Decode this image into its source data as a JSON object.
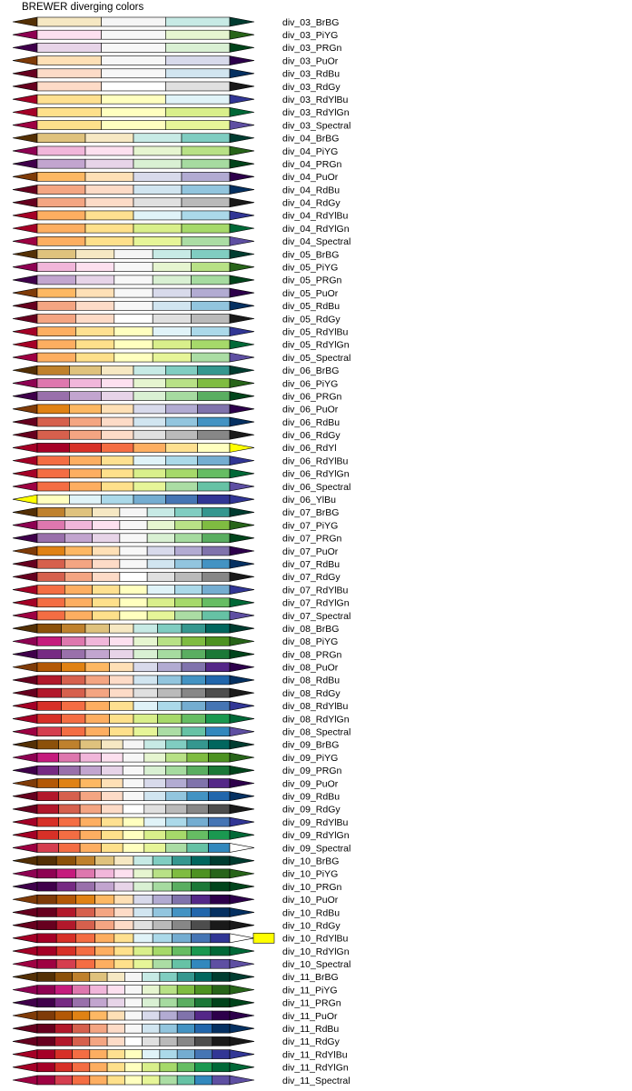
{
  "title": "BREWER diverging colors",
  "chart_data": {
    "type": "table",
    "title": "BREWER diverging colors",
    "palettes": [
      {
        "name": "div_03_BrBG",
        "n": 3
      },
      {
        "name": "div_03_PiYG",
        "n": 3
      },
      {
        "name": "div_03_PRGn",
        "n": 3
      },
      {
        "name": "div_03_PuOr",
        "n": 3
      },
      {
        "name": "div_03_RdBu",
        "n": 3
      },
      {
        "name": "div_03_RdGy",
        "n": 3
      },
      {
        "name": "div_03_RdYlBu",
        "n": 3
      },
      {
        "name": "div_03_RdYlGn",
        "n": 3
      },
      {
        "name": "div_03_Spectral",
        "n": 3
      },
      {
        "name": "div_04_BrBG",
        "n": 4
      },
      {
        "name": "div_04_PiYG",
        "n": 4
      },
      {
        "name": "div_04_PRGn",
        "n": 4
      },
      {
        "name": "div_04_PuOr",
        "n": 4
      },
      {
        "name": "div_04_RdBu",
        "n": 4
      },
      {
        "name": "div_04_RdGy",
        "n": 4
      },
      {
        "name": "div_04_RdYlBu",
        "n": 4
      },
      {
        "name": "div_04_RdYlGn",
        "n": 4
      },
      {
        "name": "div_04_Spectral",
        "n": 4
      },
      {
        "name": "div_05_BrBG",
        "n": 5
      },
      {
        "name": "div_05_PiYG",
        "n": 5
      },
      {
        "name": "div_05_PRGn",
        "n": 5
      },
      {
        "name": "div_05_PuOr",
        "n": 5
      },
      {
        "name": "div_05_RdBu",
        "n": 5
      },
      {
        "name": "div_05_RdGy",
        "n": 5
      },
      {
        "name": "div_05_RdYlBu",
        "n": 5
      },
      {
        "name": "div_05_RdYlGn",
        "n": 5
      },
      {
        "name": "div_05_Spectral",
        "n": 5
      },
      {
        "name": "div_06_BrBG",
        "n": 6
      },
      {
        "name": "div_06_PiYG",
        "n": 6
      },
      {
        "name": "div_06_PRGn",
        "n": 6
      },
      {
        "name": "div_06_PuOr",
        "n": 6
      },
      {
        "name": "div_06_RdBu",
        "n": 6
      },
      {
        "name": "div_06_RdGy",
        "n": 6
      },
      {
        "name": "div_06_RdYl",
        "n": 6
      },
      {
        "name": "div_06_RdYlBu",
        "n": 6
      },
      {
        "name": "div_06_RdYlGn",
        "n": 6
      },
      {
        "name": "div_06_Spectral",
        "n": 6
      },
      {
        "name": "div_06_YlBu",
        "n": 6
      },
      {
        "name": "div_07_BrBG",
        "n": 7
      },
      {
        "name": "div_07_PiYG",
        "n": 7
      },
      {
        "name": "div_07_PRGn",
        "n": 7
      },
      {
        "name": "div_07_PuOr",
        "n": 7
      },
      {
        "name": "div_07_RdBu",
        "n": 7
      },
      {
        "name": "div_07_RdGy",
        "n": 7
      },
      {
        "name": "div_07_RdYlBu",
        "n": 7
      },
      {
        "name": "div_07_RdYlGn",
        "n": 7
      },
      {
        "name": "div_07_Spectral",
        "n": 7
      },
      {
        "name": "div_08_BrBG",
        "n": 8
      },
      {
        "name": "div_08_PiYG",
        "n": 8
      },
      {
        "name": "div_08_PRGn",
        "n": 8
      },
      {
        "name": "div_08_PuOr",
        "n": 8
      },
      {
        "name": "div_08_RdBu",
        "n": 8
      },
      {
        "name": "div_08_RdGy",
        "n": 8
      },
      {
        "name": "div_08_RdYlBu",
        "n": 8
      },
      {
        "name": "div_08_RdYlGn",
        "n": 8
      },
      {
        "name": "div_08_Spectral",
        "n": 8
      },
      {
        "name": "div_09_BrBG",
        "n": 9
      },
      {
        "name": "div_09_PiYG",
        "n": 9
      },
      {
        "name": "div_09_PRGn",
        "n": 9
      },
      {
        "name": "div_09_PuOr",
        "n": 9
      },
      {
        "name": "div_09_RdBu",
        "n": 9
      },
      {
        "name": "div_09_RdGy",
        "n": 9
      },
      {
        "name": "div_09_RdYlBu",
        "n": 9
      },
      {
        "name": "div_09_RdYlGn",
        "n": 9
      },
      {
        "name": "div_09_Spectral",
        "n": 9
      },
      {
        "name": "div_10_BrBG",
        "n": 10
      },
      {
        "name": "div_10_PiYG",
        "n": 10
      },
      {
        "name": "div_10_PRGn",
        "n": 10
      },
      {
        "name": "div_10_PuOr",
        "n": 10
      },
      {
        "name": "div_10_RdBu",
        "n": 10
      },
      {
        "name": "div_10_RdGy",
        "n": 10
      },
      {
        "name": "div_10_RdYlBu",
        "n": 10
      },
      {
        "name": "div_10_RdYlGn",
        "n": 10
      },
      {
        "name": "div_10_Spectral",
        "n": 10
      },
      {
        "name": "div_11_BrBG",
        "n": 11
      },
      {
        "name": "div_11_PiYG",
        "n": 11
      },
      {
        "name": "div_11_PRGn",
        "n": 11
      },
      {
        "name": "div_11_PuOr",
        "n": 11
      },
      {
        "name": "div_11_RdBu",
        "n": 11
      },
      {
        "name": "div_11_RdGy",
        "n": 11
      },
      {
        "name": "div_11_RdYlBu",
        "n": 11
      },
      {
        "name": "div_11_RdYlGn",
        "n": 11
      },
      {
        "name": "div_11_Spectral",
        "n": 11
      }
    ],
    "schemes": {
      "BrBG": {
        "low": "#543005",
        "high": "#003c30",
        "stops": [
          "#8c510a",
          "#bf812d",
          "#dfc27d",
          "#f6e8c3",
          "#f5f5f5",
          "#c7eae5",
          "#80cdc1",
          "#35978f",
          "#01665e"
        ]
      },
      "PiYG": {
        "low": "#8e0152",
        "high": "#276419",
        "stops": [
          "#c51b7d",
          "#de77ae",
          "#f1b6da",
          "#fde0ef",
          "#f7f7f7",
          "#e6f5d0",
          "#b8e186",
          "#7fbc41",
          "#4d9221"
        ]
      },
      "PRGn": {
        "low": "#40004b",
        "high": "#00441b",
        "stops": [
          "#762a83",
          "#9970ab",
          "#c2a5cf",
          "#e7d4e8",
          "#f7f7f7",
          "#d9f0d3",
          "#a6dba0",
          "#5aae61",
          "#1b7837"
        ]
      },
      "PuOr": {
        "low": "#7f3b08",
        "high": "#2d004b",
        "stops": [
          "#b35806",
          "#e08214",
          "#fdb863",
          "#fee0b6",
          "#f7f7f7",
          "#d8daeb",
          "#b2abd2",
          "#8073ac",
          "#542788"
        ]
      },
      "RdBu": {
        "low": "#67001f",
        "high": "#053061",
        "stops": [
          "#b2182b",
          "#d6604d",
          "#f4a582",
          "#fddbc7",
          "#f7f7f7",
          "#d1e5f0",
          "#92c5de",
          "#4393c3",
          "#2166ac"
        ]
      },
      "RdGy": {
        "low": "#67001f",
        "high": "#1a1a1a",
        "stops": [
          "#b2182b",
          "#d6604d",
          "#f4a582",
          "#fddbc7",
          "#ffffff",
          "#e0e0e0",
          "#bababa",
          "#878787",
          "#4d4d4d"
        ]
      },
      "RdYlBu": {
        "low": "#a50026",
        "high": "#313695",
        "stops": [
          "#d73027",
          "#f46d43",
          "#fdae61",
          "#fee090",
          "#ffffbf",
          "#e0f3f8",
          "#abd9e9",
          "#74add1",
          "#4575b4"
        ]
      },
      "RdYlGn": {
        "low": "#a50026",
        "high": "#006837",
        "stops": [
          "#d73027",
          "#f46d43",
          "#fdae61",
          "#fee08b",
          "#ffffbf",
          "#d9ef8b",
          "#a6d96a",
          "#66bd63",
          "#1a9850"
        ]
      },
      "Spectral": {
        "low": "#9e0142",
        "high": "#5e4fa2",
        "stops": [
          "#d53e4f",
          "#f46d43",
          "#fdae61",
          "#fee08b",
          "#ffffbf",
          "#e6f598",
          "#abdda4",
          "#66c2a5",
          "#3288bd"
        ]
      },
      "RdYl": {
        "low": "#a50026",
        "high": "#ffff00",
        "colors": [
          "#a50026",
          "#d73027",
          "#f46d43",
          "#fdae61",
          "#fee090",
          "#ffffbf"
        ]
      },
      "YlBu": {
        "low": "#ffff00",
        "high": "#313695",
        "colors": [
          "#ffffbf",
          "#e0f3f8",
          "#abd9e9",
          "#74add1",
          "#4575b4",
          "#313695"
        ]
      }
    },
    "special": {
      "div_09_Spectral": {
        "high": "#ffffff"
      },
      "div_10_RdYlBu": {
        "high": "#ffffff",
        "highlight": "#ffff00"
      }
    }
  }
}
